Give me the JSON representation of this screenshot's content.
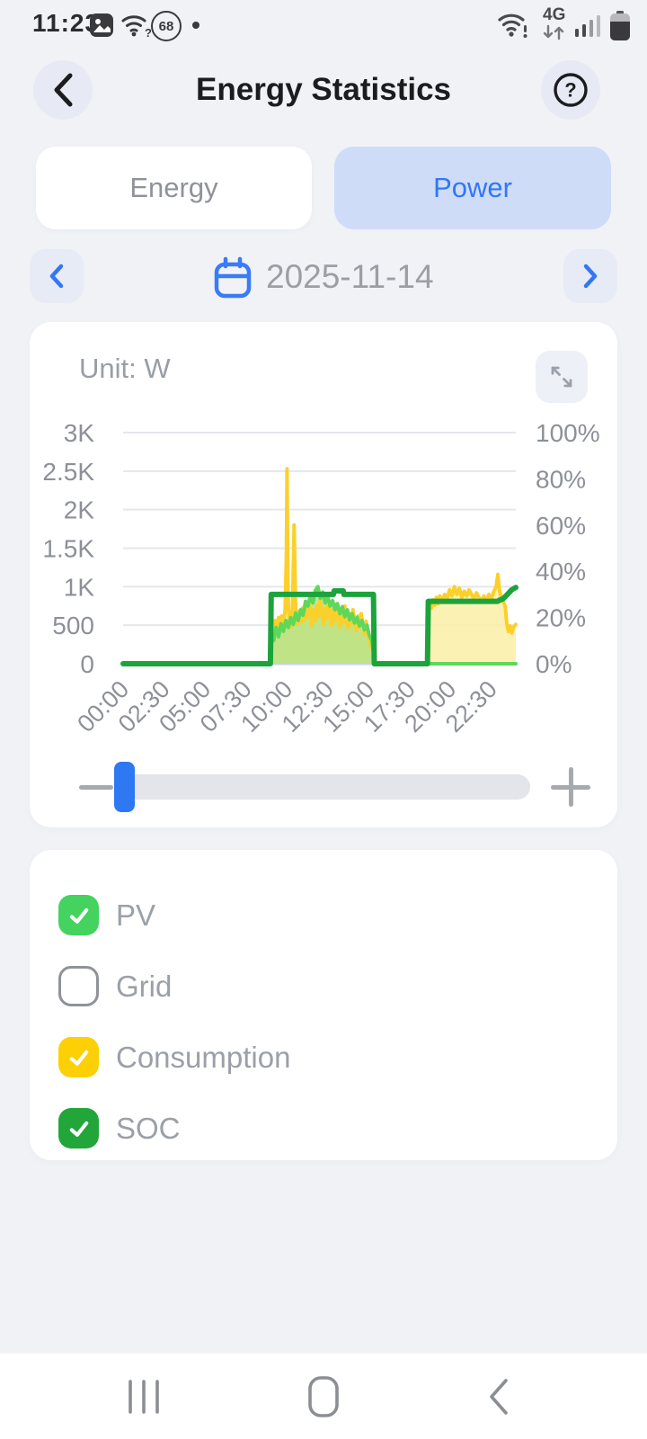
{
  "status_bar": {
    "time": "11:23",
    "badge_count": "68",
    "network_type": "4G",
    "left_icons": [
      "gallery-icon",
      "wifi-question-icon",
      "notification-count-badge",
      "notification-dot"
    ],
    "right_icons": [
      "wifi-alert-icon",
      "4g-updown-icon",
      "signal-bars-icon",
      "battery-icon"
    ]
  },
  "header": {
    "title": "Energy Statistics",
    "back_icon": "chevron-left",
    "help_glyph": "?"
  },
  "tabs": [
    {
      "label": "Energy",
      "active": false
    },
    {
      "label": "Power",
      "active": true
    }
  ],
  "date_nav": {
    "date": "2025-11-14",
    "prev_icon": "chevron-left",
    "next_icon": "chevron-right"
  },
  "chart_card": {
    "unit_label": "Unit: W",
    "expand_icon": "expand-arrows"
  },
  "colors": {
    "accent_blue": "#3277f5",
    "pv_green": "#5ed75a",
    "consumption_yellow": "#fcd02a",
    "soc_dark_green": "#1da33c",
    "axis_label_gray": "#8d9097",
    "gridline": "#e4e7ec",
    "baseline_periwinkle": "#c9d4f1"
  },
  "chart_data": {
    "type": "line",
    "unit": "W",
    "x_range_hours": [
      0,
      24
    ],
    "x_ticks": {
      "hours": [
        0,
        2.5,
        5,
        7.5,
        10,
        12.5,
        15,
        17.5,
        20,
        22.5
      ],
      "labels": [
        "00:00",
        "02:30",
        "05:00",
        "07:30",
        "10:00",
        "12:30",
        "15:00",
        "17:30",
        "20:00",
        "22:30"
      ]
    },
    "y_left": {
      "min": 0,
      "max": 3000,
      "tick_values": [
        0,
        500,
        1000,
        1500,
        2000,
        2500,
        3000
      ],
      "tick_labels": [
        "0",
        "500",
        "1K",
        "1.5K",
        "2K",
        "2.5K",
        "3K"
      ]
    },
    "y_right": {
      "min": 0,
      "max": 100,
      "tick_values": [
        0,
        20,
        40,
        60,
        80,
        100
      ],
      "tick_labels": [
        "0%",
        "20%",
        "40%",
        "60%",
        "80%",
        "100%"
      ]
    },
    "grid": true,
    "legend_position": "below-card",
    "series": [
      {
        "name": "Consumption",
        "axis": "left",
        "line_color": "#fcd02a",
        "fill_color": "rgba(250,238,166,0.85)",
        "line_width": 4,
        "points": [
          [
            0,
            0
          ],
          [
            8.95,
            0
          ],
          [
            9.0,
            340
          ],
          [
            9.1,
            500
          ],
          [
            9.2,
            380
          ],
          [
            9.3,
            560
          ],
          [
            9.4,
            420
          ],
          [
            9.5,
            600
          ],
          [
            9.6,
            450
          ],
          [
            9.7,
            620
          ],
          [
            9.8,
            480
          ],
          [
            9.9,
            700
          ],
          [
            9.98,
            1400
          ],
          [
            10.02,
            2530
          ],
          [
            10.08,
            900
          ],
          [
            10.15,
            560
          ],
          [
            10.25,
            480
          ],
          [
            10.35,
            700
          ],
          [
            10.45,
            1800
          ],
          [
            10.55,
            640
          ],
          [
            10.65,
            520
          ],
          [
            10.75,
            680
          ],
          [
            10.85,
            540
          ],
          [
            10.95,
            720
          ],
          [
            11.05,
            560
          ],
          [
            11.15,
            750
          ],
          [
            11.25,
            600
          ],
          [
            11.35,
            800
          ],
          [
            11.45,
            650
          ],
          [
            11.55,
            500
          ],
          [
            11.65,
            700
          ],
          [
            11.75,
            560
          ],
          [
            11.85,
            760
          ],
          [
            11.95,
            620
          ],
          [
            12.05,
            820
          ],
          [
            12.15,
            650
          ],
          [
            12.25,
            520
          ],
          [
            12.35,
            720
          ],
          [
            12.45,
            580
          ],
          [
            12.55,
            850
          ],
          [
            12.65,
            640
          ],
          [
            12.75,
            500
          ],
          [
            12.85,
            700
          ],
          [
            12.95,
            560
          ],
          [
            13.05,
            780
          ],
          [
            13.15,
            600
          ],
          [
            13.25,
            480
          ],
          [
            13.35,
            680
          ],
          [
            13.45,
            540
          ],
          [
            13.55,
            750
          ],
          [
            13.65,
            580
          ],
          [
            13.75,
            460
          ],
          [
            13.85,
            650
          ],
          [
            13.95,
            520
          ],
          [
            14.05,
            700
          ],
          [
            14.15,
            560
          ],
          [
            14.25,
            430
          ],
          [
            14.35,
            620
          ],
          [
            14.45,
            480
          ],
          [
            14.55,
            650
          ],
          [
            14.65,
            500
          ],
          [
            14.75,
            380
          ],
          [
            14.85,
            550
          ],
          [
            14.95,
            420
          ],
          [
            15.05,
            300
          ],
          [
            15.15,
            220
          ],
          [
            15.25,
            320
          ],
          [
            15.35,
            0
          ],
          [
            18.6,
            0
          ],
          [
            18.65,
            700
          ],
          [
            18.75,
            790
          ],
          [
            18.85,
            720
          ],
          [
            18.95,
            830
          ],
          [
            19.05,
            760
          ],
          [
            19.15,
            860
          ],
          [
            19.25,
            780
          ],
          [
            19.35,
            880
          ],
          [
            19.5,
            800
          ],
          [
            19.65,
            900
          ],
          [
            19.8,
            840
          ],
          [
            19.95,
            960
          ],
          [
            20.1,
            880
          ],
          [
            20.25,
            1000
          ],
          [
            20.4,
            900
          ],
          [
            20.55,
            980
          ],
          [
            20.7,
            860
          ],
          [
            20.85,
            940
          ],
          [
            21.0,
            880
          ],
          [
            21.15,
            960
          ],
          [
            21.3,
            900
          ],
          [
            21.45,
            840
          ],
          [
            21.6,
            920
          ],
          [
            21.75,
            860
          ],
          [
            21.9,
            800
          ],
          [
            22.05,
            880
          ],
          [
            22.2,
            820
          ],
          [
            22.35,
            900
          ],
          [
            22.5,
            840
          ],
          [
            22.65,
            930
          ],
          [
            22.8,
            1010
          ],
          [
            22.9,
            1160
          ],
          [
            23.0,
            950
          ],
          [
            23.1,
            870
          ],
          [
            23.2,
            820
          ],
          [
            23.35,
            750
          ],
          [
            23.45,
            520
          ],
          [
            23.55,
            420
          ],
          [
            23.65,
            490
          ],
          [
            23.75,
            400
          ],
          [
            23.85,
            470
          ],
          [
            24,
            510
          ]
        ]
      },
      {
        "name": "PV",
        "axis": "left",
        "line_color": "#5ed75a",
        "fill_color": "rgba(178,224,122,0.8)",
        "line_width": 4,
        "points": [
          [
            0,
            0
          ],
          [
            8.95,
            0
          ],
          [
            9.0,
            260
          ],
          [
            9.1,
            380
          ],
          [
            9.2,
            300
          ],
          [
            9.35,
            470
          ],
          [
            9.5,
            350
          ],
          [
            9.65,
            520
          ],
          [
            9.8,
            420
          ],
          [
            9.95,
            560
          ],
          [
            10.1,
            470
          ],
          [
            10.25,
            600
          ],
          [
            10.4,
            510
          ],
          [
            10.55,
            660
          ],
          [
            10.7,
            560
          ],
          [
            10.85,
            700
          ],
          [
            11.0,
            630
          ],
          [
            11.15,
            810
          ],
          [
            11.3,
            750
          ],
          [
            11.45,
            900
          ],
          [
            11.6,
            790
          ],
          [
            11.75,
            950
          ],
          [
            11.9,
            1000
          ],
          [
            12.05,
            850
          ],
          [
            12.2,
            930
          ],
          [
            12.35,
            790
          ],
          [
            12.5,
            880
          ],
          [
            12.65,
            750
          ],
          [
            12.8,
            820
          ],
          [
            12.95,
            700
          ],
          [
            13.1,
            780
          ],
          [
            13.25,
            650
          ],
          [
            13.4,
            740
          ],
          [
            13.55,
            610
          ],
          [
            13.7,
            700
          ],
          [
            13.85,
            570
          ],
          [
            14.0,
            650
          ],
          [
            14.15,
            530
          ],
          [
            14.3,
            600
          ],
          [
            14.45,
            490
          ],
          [
            14.6,
            560
          ],
          [
            14.75,
            440
          ],
          [
            14.9,
            500
          ],
          [
            15.05,
            370
          ],
          [
            15.2,
            300
          ],
          [
            15.3,
            140
          ],
          [
            15.35,
            0
          ],
          [
            24,
            0
          ]
        ]
      },
      {
        "name": "SOC",
        "axis": "right",
        "line_color": "#1da33c",
        "fill_color": null,
        "line_width": 6,
        "points": [
          [
            0,
            0
          ],
          [
            9.0,
            0
          ],
          [
            9.05,
            30
          ],
          [
            12.85,
            30
          ],
          [
            12.9,
            31.5
          ],
          [
            13.45,
            31.5
          ],
          [
            13.5,
            30
          ],
          [
            15.3,
            30
          ],
          [
            15.35,
            0
          ],
          [
            18.6,
            0
          ],
          [
            18.65,
            27
          ],
          [
            22.9,
            27
          ],
          [
            23.0,
            27.5
          ],
          [
            23.2,
            28
          ],
          [
            23.35,
            29
          ],
          [
            23.55,
            30.5
          ],
          [
            23.75,
            32
          ],
          [
            24,
            33
          ]
        ]
      }
    ]
  },
  "zoom_control": {
    "minus_icon": "minus",
    "plus_icon": "plus",
    "handle_position": "left"
  },
  "legend": {
    "items": [
      {
        "label": "PV",
        "checked": true,
        "color": "#44d35e"
      },
      {
        "label": "Grid",
        "checked": false,
        "color": null
      },
      {
        "label": "Consumption",
        "checked": true,
        "color": "#fcd005"
      },
      {
        "label": "SOC",
        "checked": true,
        "color": "#22a63a"
      }
    ]
  },
  "bottom_nav": {
    "items": [
      "recents",
      "home",
      "back"
    ]
  }
}
